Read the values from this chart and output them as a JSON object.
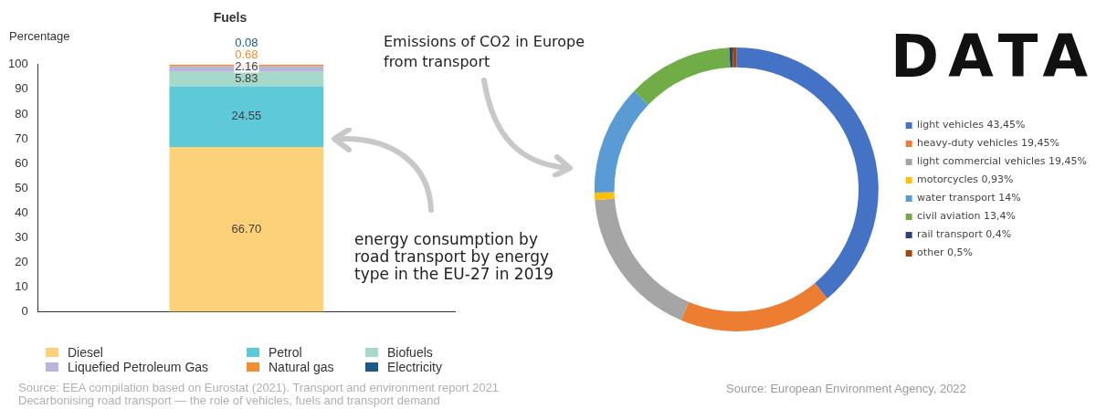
{
  "chart_data": [
    {
      "type": "bar",
      "title": "Fuels",
      "ylabel": "Percentage",
      "stacked": true,
      "categories": [
        null
      ],
      "series": [
        {
          "name": "Diesel",
          "color": "#fdd17a",
          "values": [
            66.7
          ],
          "value_labels": [
            "66.70"
          ]
        },
        {
          "name": "Petrol",
          "color": "#5ec9d8",
          "values": [
            24.55
          ],
          "value_labels": [
            "24.55"
          ]
        },
        {
          "name": "Biofuels",
          "color": "#a6d9c9",
          "values": [
            5.83
          ],
          "value_labels": [
            "5.83"
          ]
        },
        {
          "name": "Liquefied Petroleum Gas",
          "color": "#b9b5d9",
          "values": [
            2.16
          ],
          "value_labels": [
            "2.16"
          ]
        },
        {
          "name": "Natural gas",
          "color": "#f28e2b",
          "values": [
            0.68
          ],
          "value_labels": [
            "0.68"
          ]
        },
        {
          "name": "Electricity",
          "color": "#1a5a8a",
          "values": [
            0.08
          ],
          "value_labels": [
            "0.08"
          ]
        }
      ],
      "ylim": [
        0,
        100
      ],
      "yticks": [
        0,
        10,
        20,
        30,
        40,
        50,
        60,
        70,
        80,
        90,
        100
      ],
      "legend": "bottom",
      "annotations": [
        "Source: EEA compilation based on Eurostat (2021). Transport and environment report 2021\nDecarbonising road transport — the role of vehicles, fuels and transport demand",
        "energy consumption by road transport by energy type in the EU-27 in 2019"
      ]
    },
    {
      "type": "donut",
      "title": "Emissions of CO2 in Europe from transport",
      "categories": [
        "light vehicles 43,45%",
        "heavy-duty vehicles 19,45%",
        "light commercial vehicles 19,45%",
        "motorcycles 0,93%",
        "water transport 14%",
        "civil aviation 13,4%",
        "rail transport 0,4%",
        "other 0,5%"
      ],
      "values": [
        43.45,
        19.45,
        19.45,
        0.93,
        14,
        13.4,
        0.4,
        0.5
      ],
      "colors": [
        "#4472c4",
        "#ed7d31",
        "#a5a5a5",
        "#ffc000",
        "#5b9bd5",
        "#70ad47",
        "#264478",
        "#9e480e"
      ],
      "legend": "right",
      "annotations": [
        "Source: European Environment Agency, 2022",
        "DATA"
      ]
    }
  ]
}
